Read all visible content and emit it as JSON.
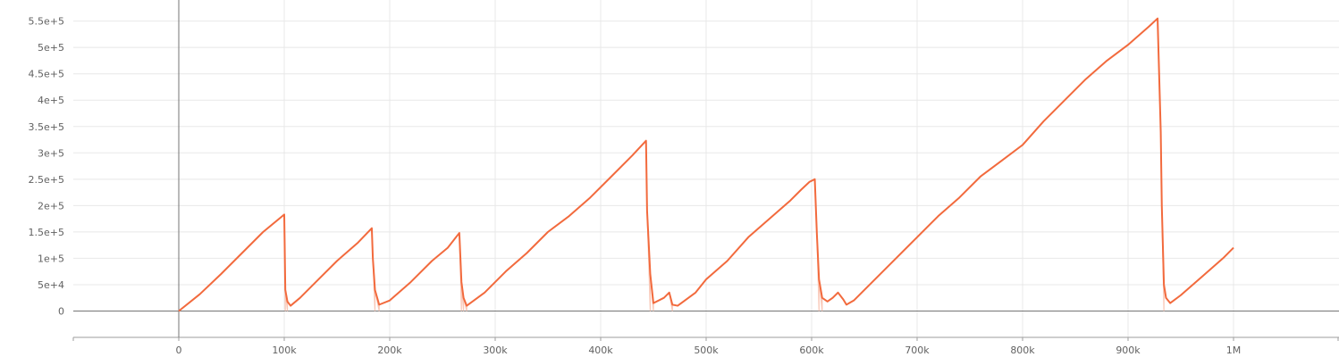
{
  "chart_data": {
    "type": "line",
    "title": "",
    "xlabel": "",
    "ylabel": "",
    "xlim": [
      -100000,
      1100000
    ],
    "ylim": [
      -50000,
      590000
    ],
    "grid": true,
    "legend": "none",
    "x_ticks": [
      {
        "value": 0,
        "label": "0"
      },
      {
        "value": 100000,
        "label": "100k"
      },
      {
        "value": 200000,
        "label": "200k"
      },
      {
        "value": 300000,
        "label": "300k"
      },
      {
        "value": 400000,
        "label": "400k"
      },
      {
        "value": 500000,
        "label": "500k"
      },
      {
        "value": 600000,
        "label": "600k"
      },
      {
        "value": 700000,
        "label": "700k"
      },
      {
        "value": 800000,
        "label": "800k"
      },
      {
        "value": 900000,
        "label": "900k"
      },
      {
        "value": 1000000,
        "label": "1M"
      }
    ],
    "y_ticks": [
      {
        "value": 0,
        "label": "0"
      },
      {
        "value": 50000,
        "label": "5e+4"
      },
      {
        "value": 100000,
        "label": "1e+5"
      },
      {
        "value": 150000,
        "label": "1.5e+5"
      },
      {
        "value": 200000,
        "label": "2e+5"
      },
      {
        "value": 250000,
        "label": "2.5e+5"
      },
      {
        "value": 300000,
        "label": "3e+5"
      },
      {
        "value": 350000,
        "label": "3.5e+5"
      },
      {
        "value": 400000,
        "label": "4e+5"
      },
      {
        "value": 450000,
        "label": "4.5e+5"
      },
      {
        "value": 500000,
        "label": "5e+5"
      },
      {
        "value": 550000,
        "label": "5.5e+5"
      }
    ],
    "series": [
      {
        "color": "#f26a3d",
        "raw_color": "#f9c7b6",
        "x": [
          0,
          20000,
          40000,
          60000,
          80000,
          100000,
          101000,
          103000,
          106000,
          115000,
          130000,
          150000,
          170000,
          183000,
          184000,
          186000,
          190000,
          200000,
          220000,
          240000,
          255000,
          266000,
          268000,
          270000,
          273000,
          290000,
          310000,
          330000,
          350000,
          370000,
          390000,
          410000,
          430000,
          443000,
          444000,
          447000,
          450000,
          460000,
          465000,
          468000,
          473000,
          490000,
          500000,
          520000,
          540000,
          560000,
          580000,
          590000,
          598000,
          603000,
          605000,
          607000,
          610000,
          615000,
          620000,
          625000,
          630000,
          633000,
          640000,
          660000,
          680000,
          700000,
          720000,
          740000,
          760000,
          780000,
          800000,
          820000,
          840000,
          860000,
          880000,
          900000,
          920000,
          928000,
          931000,
          932000,
          934000,
          936000,
          940000,
          950000,
          970000,
          990000,
          1000000
        ],
        "y": [
          0,
          32000,
          70000,
          110000,
          150000,
          183000,
          40000,
          18000,
          10000,
          25000,
          55000,
          95000,
          130000,
          157000,
          100000,
          40000,
          12000,
          20000,
          55000,
          95000,
          120000,
          148000,
          55000,
          25000,
          10000,
          35000,
          75000,
          110000,
          150000,
          180000,
          215000,
          255000,
          295000,
          323000,
          190000,
          70000,
          15000,
          25000,
          35000,
          12000,
          10000,
          35000,
          60000,
          95000,
          140000,
          175000,
          210000,
          230000,
          245000,
          250000,
          145000,
          60000,
          25000,
          18000,
          25000,
          35000,
          22000,
          12000,
          20000,
          60000,
          100000,
          140000,
          180000,
          215000,
          255000,
          285000,
          315000,
          360000,
          400000,
          440000,
          475000,
          505000,
          540000,
          555000,
          340000,
          200000,
          50000,
          25000,
          15000,
          30000,
          65000,
          100000,
          120000
        ]
      }
    ]
  }
}
